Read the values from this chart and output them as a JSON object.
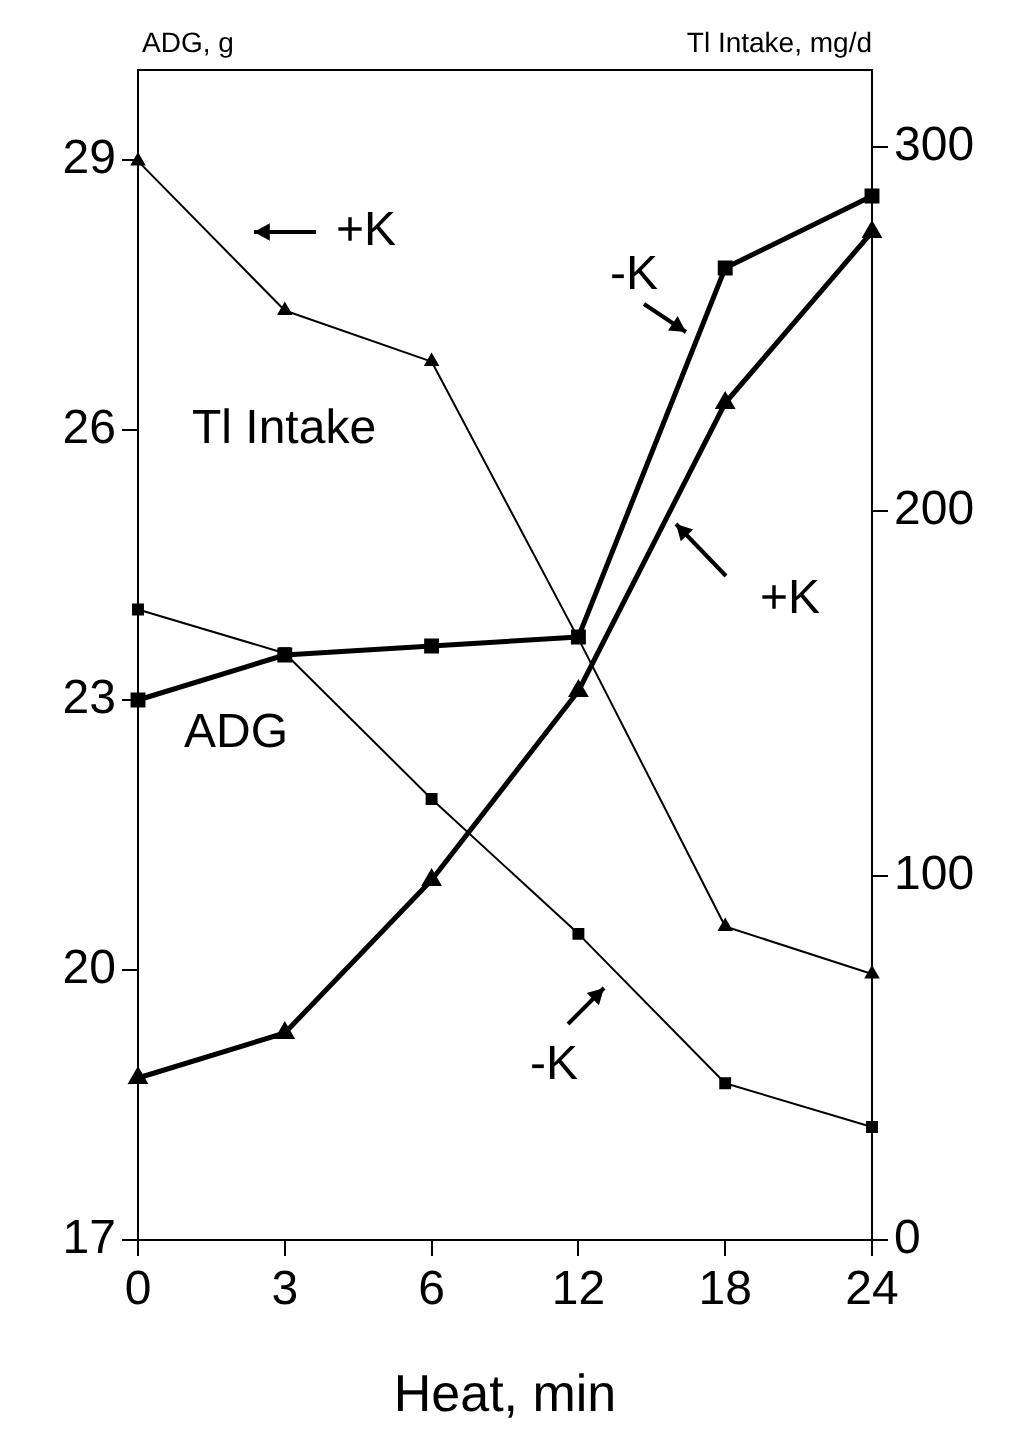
{
  "chart_data": {
    "type": "line",
    "xlabel": "Heat, min",
    "ylabel": "ADG, g",
    "y2label": "Tl Intake, mg/d",
    "categories": [
      "0",
      "3",
      "6",
      "12",
      "18",
      "24"
    ],
    "series": [
      {
        "color": "#000000",
        "marker": "square",
        "values": [
          23.0,
          23.5,
          23.6,
          23.7,
          27.8,
          28.6
        ]
      },
      {
        "color": "#000000",
        "marker": "triangle",
        "values": [
          18.8,
          19.3,
          21.0,
          23.1,
          26.3,
          28.2
        ]
      },
      {
        "color": "#000000",
        "marker": "triangle",
        "axis": "y2",
        "values": [
          296,
          255,
          241,
          165,
          86,
          73
        ]
      },
      {
        "color": "#000000",
        "marker": "square",
        "axis": "y2",
        "values": [
          173,
          161,
          121,
          84,
          43,
          31
        ]
      }
    ],
    "ylim": [
      17,
      30
    ],
    "yticks": [
      17,
      20,
      23,
      26,
      29
    ],
    "y2lim": [
      0,
      321
    ],
    "y2ticks": [
      0,
      100,
      200,
      300
    ],
    "grid": false,
    "legend": false,
    "line_style": "solid",
    "annotations": [
      "+K",
      "Tl Intake",
      "-K",
      "+K",
      "ADG",
      "-K"
    ]
  }
}
